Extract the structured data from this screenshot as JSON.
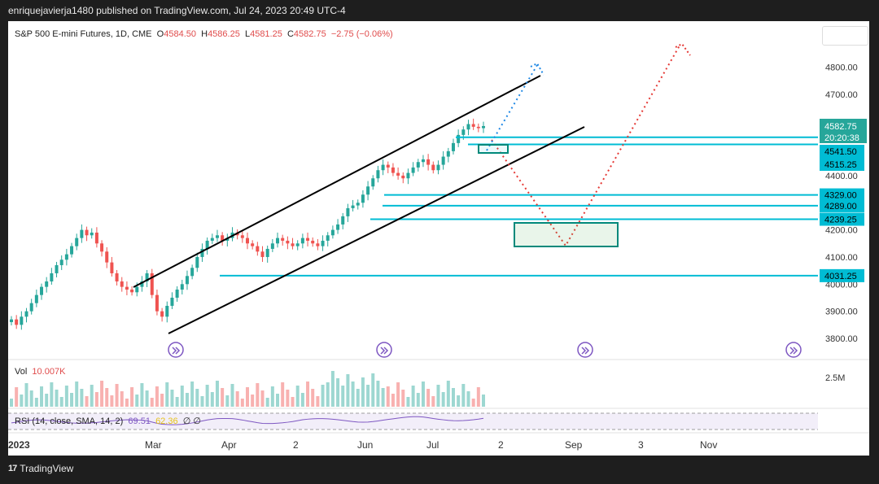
{
  "header": {
    "published": "enriquejavierja1480 published on TradingView.com, Jul 24, 2023 20:49 UTC-4"
  },
  "legend": {
    "symbol": "S&P 500 E-mini Futures, 1D, CME",
    "open_label": "O",
    "open": "4584.50",
    "high_label": "H",
    "high": "4586.25",
    "low_label": "L",
    "low": "4581.25",
    "close_label": "C",
    "close": "4582.75",
    "change": "−2.75 (−0.06%)"
  },
  "price_badge": {
    "price": "4582.75",
    "countdown": "20:20:38"
  },
  "volume": {
    "label": "Vol",
    "value": "10.007K",
    "axis_label": "2.5M"
  },
  "rsi": {
    "label": "RSI (14, close, SMA, 14, 2)",
    "value1": "69.51",
    "value2": "62.36",
    "extra": "∅ ∅"
  },
  "footer": {
    "brand": "TradingView"
  },
  "colors": {
    "up": "#26a69a",
    "down": "#ef5350",
    "level": "#00bcd4",
    "trend": "#000000",
    "projection_red": "#e53935",
    "projection_blue": "#1e88e5",
    "rsi": "#7e57c2"
  },
  "chart_data": {
    "type": "candlestick",
    "timeframe": "1D",
    "y_axis_ticks": [
      "4800.00",
      "4700.00",
      "4400.00",
      "4300.00",
      "4200.00",
      "4100.00",
      "4000.00",
      "3900.00",
      "3800.00"
    ],
    "x_axis_ticks": [
      "2023",
      "Mar",
      "Apr",
      "2",
      "Jun",
      "Jul",
      "2",
      "Sep",
      "3",
      "Nov"
    ],
    "ylim": [
      3750,
      4900
    ],
    "horizontal_levels": [
      {
        "price": 4541.5,
        "label": "4541.50"
      },
      {
        "price": 4515.25,
        "label": "4515.25"
      },
      {
        "price": 4329.0,
        "label": "4329.00"
      },
      {
        "price": 4289.0,
        "label": "4289.00"
      },
      {
        "price": 4239.25,
        "label": "4239.25"
      },
      {
        "price": 4031.25,
        "label": "4031.25"
      }
    ],
    "last_price": 4582.75,
    "closes": [
      3870,
      3850,
      3880,
      3900,
      3930,
      3960,
      3990,
      4010,
      4040,
      4070,
      4090,
      4110,
      4140,
      4170,
      4200,
      4180,
      4190,
      4150,
      4120,
      4080,
      4040,
      4010,
      3990,
      3980,
      3970,
      3990,
      4010,
      4040,
      3960,
      3900,
      3880,
      3920,
      3950,
      3980,
      4000,
      4030,
      4060,
      4100,
      4130,
      4160,
      4170,
      4180,
      4160,
      4170,
      4190,
      4180,
      4170,
      4150,
      4140,
      4120,
      4100,
      4130,
      4150,
      4170,
      4160,
      4150,
      4140,
      4150,
      4170,
      4160,
      4150,
      4140,
      4160,
      4180,
      4200,
      4220,
      4250,
      4280,
      4290,
      4300,
      4330,
      4360,
      4390,
      4420,
      4440,
      4430,
      4410,
      4400,
      4390,
      4410,
      4430,
      4450,
      4460,
      4440,
      4420,
      4440,
      4470,
      4490,
      4520,
      4550,
      4570,
      4590,
      4580,
      4575,
      4582.75
    ]
  }
}
